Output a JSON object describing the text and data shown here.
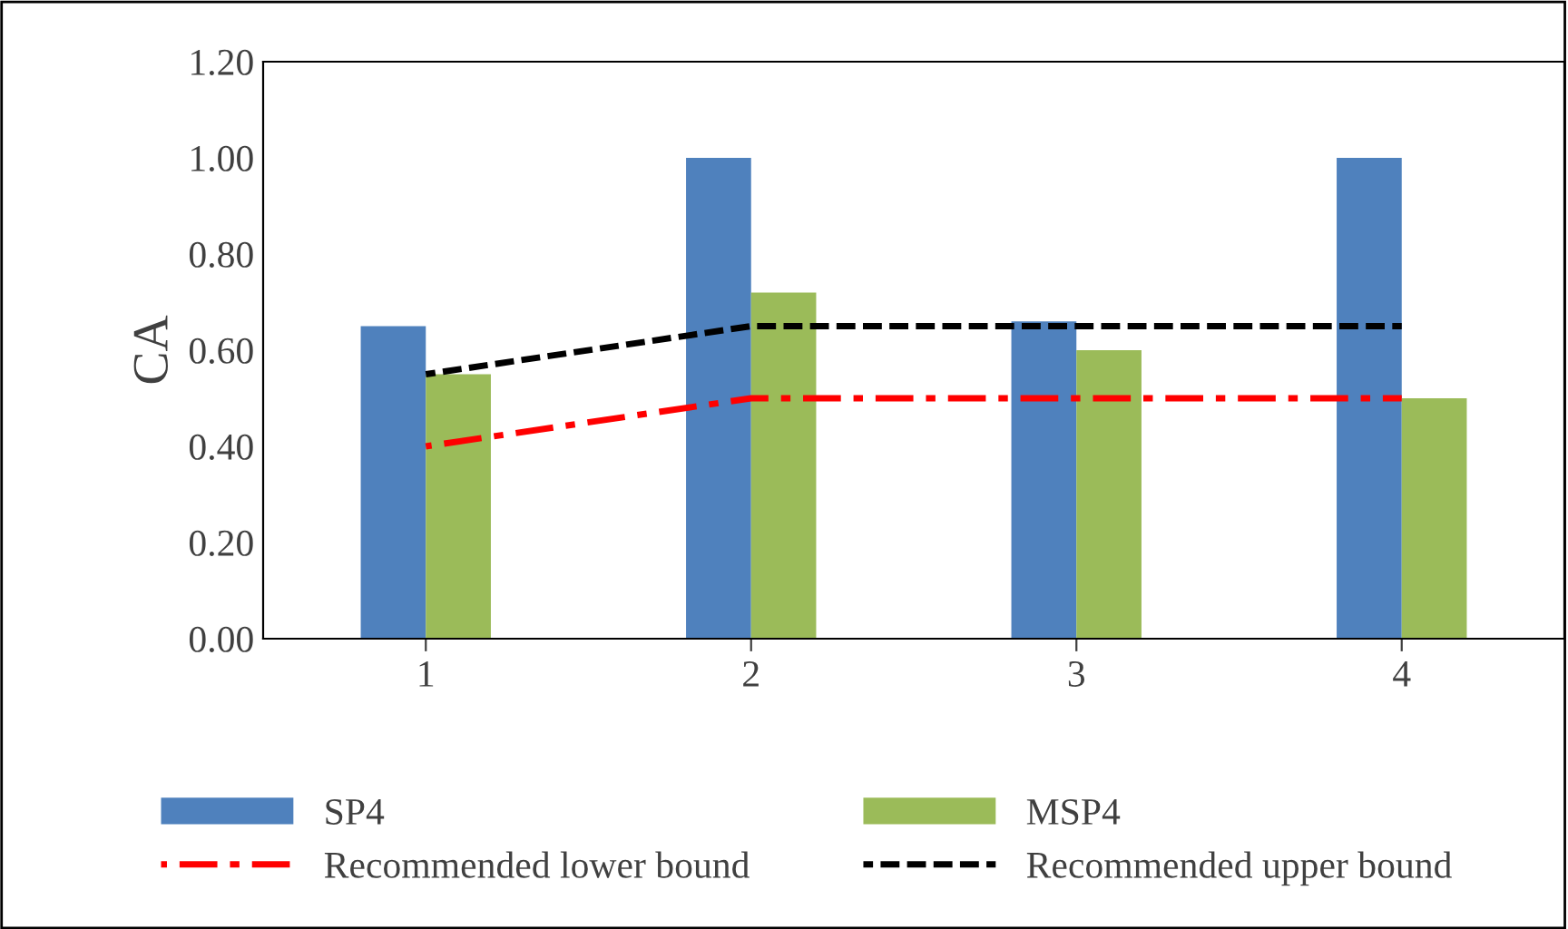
{
  "chart_data": {
    "type": "bar",
    "ylabel": "CA",
    "categories": [
      "1",
      "2",
      "3",
      "4"
    ],
    "series": [
      {
        "name": "SP4",
        "color": "#4f81bd",
        "values": [
          0.65,
          1.0,
          0.66,
          1.0
        ]
      },
      {
        "name": "MSP4",
        "color": "#9bbb59",
        "values": [
          0.55,
          0.72,
          0.6,
          0.5
        ]
      },
      {
        "name": "Recommended lower bound",
        "type": "line",
        "color": "#ff0000",
        "line_style": "dashdot",
        "values": [
          0.4,
          0.5,
          0.5,
          0.5
        ]
      },
      {
        "name": "Recommended upper bound",
        "type": "line",
        "color": "#000000",
        "line_style": "dashed",
        "values": [
          0.55,
          0.65,
          0.65,
          0.65
        ]
      }
    ],
    "ylim": [
      0,
      1.2
    ],
    "yticks": [
      {
        "value": 0,
        "label": "0.00"
      },
      {
        "value": 0.2,
        "label": "0.20"
      },
      {
        "value": 0.4,
        "label": "0.40"
      },
      {
        "value": 0.6,
        "label": "0.60"
      },
      {
        "value": 0.8,
        "label": "0.80"
      },
      {
        "value": 1.0,
        "label": "1.00"
      },
      {
        "value": 1.2,
        "label": "1.20"
      }
    ],
    "grid": false,
    "legend": "bottom"
  }
}
